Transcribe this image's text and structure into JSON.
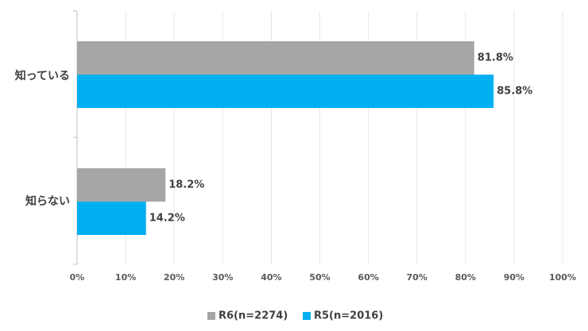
{
  "chart_data": {
    "type": "bar",
    "orientation": "horizontal",
    "categories": [
      "知っている",
      "知らない"
    ],
    "series": [
      {
        "name": "R6(n=2274)",
        "color": "#a6a6a6",
        "values": [
          81.8,
          18.2
        ],
        "labels": [
          "81.8%",
          "18.2%"
        ]
      },
      {
        "name": "R5(n=2016)",
        "color": "#00b0f0",
        "values": [
          85.8,
          14.2
        ],
        "labels": [
          "85.8%",
          "14.2%"
        ]
      }
    ],
    "xlim": [
      0,
      100
    ],
    "ticks": [
      "0%",
      "10%",
      "20%",
      "30%",
      "40%",
      "50%",
      "60%",
      "70%",
      "80%",
      "90%",
      "100%"
    ],
    "grid": true,
    "legend_position": "bottom"
  }
}
